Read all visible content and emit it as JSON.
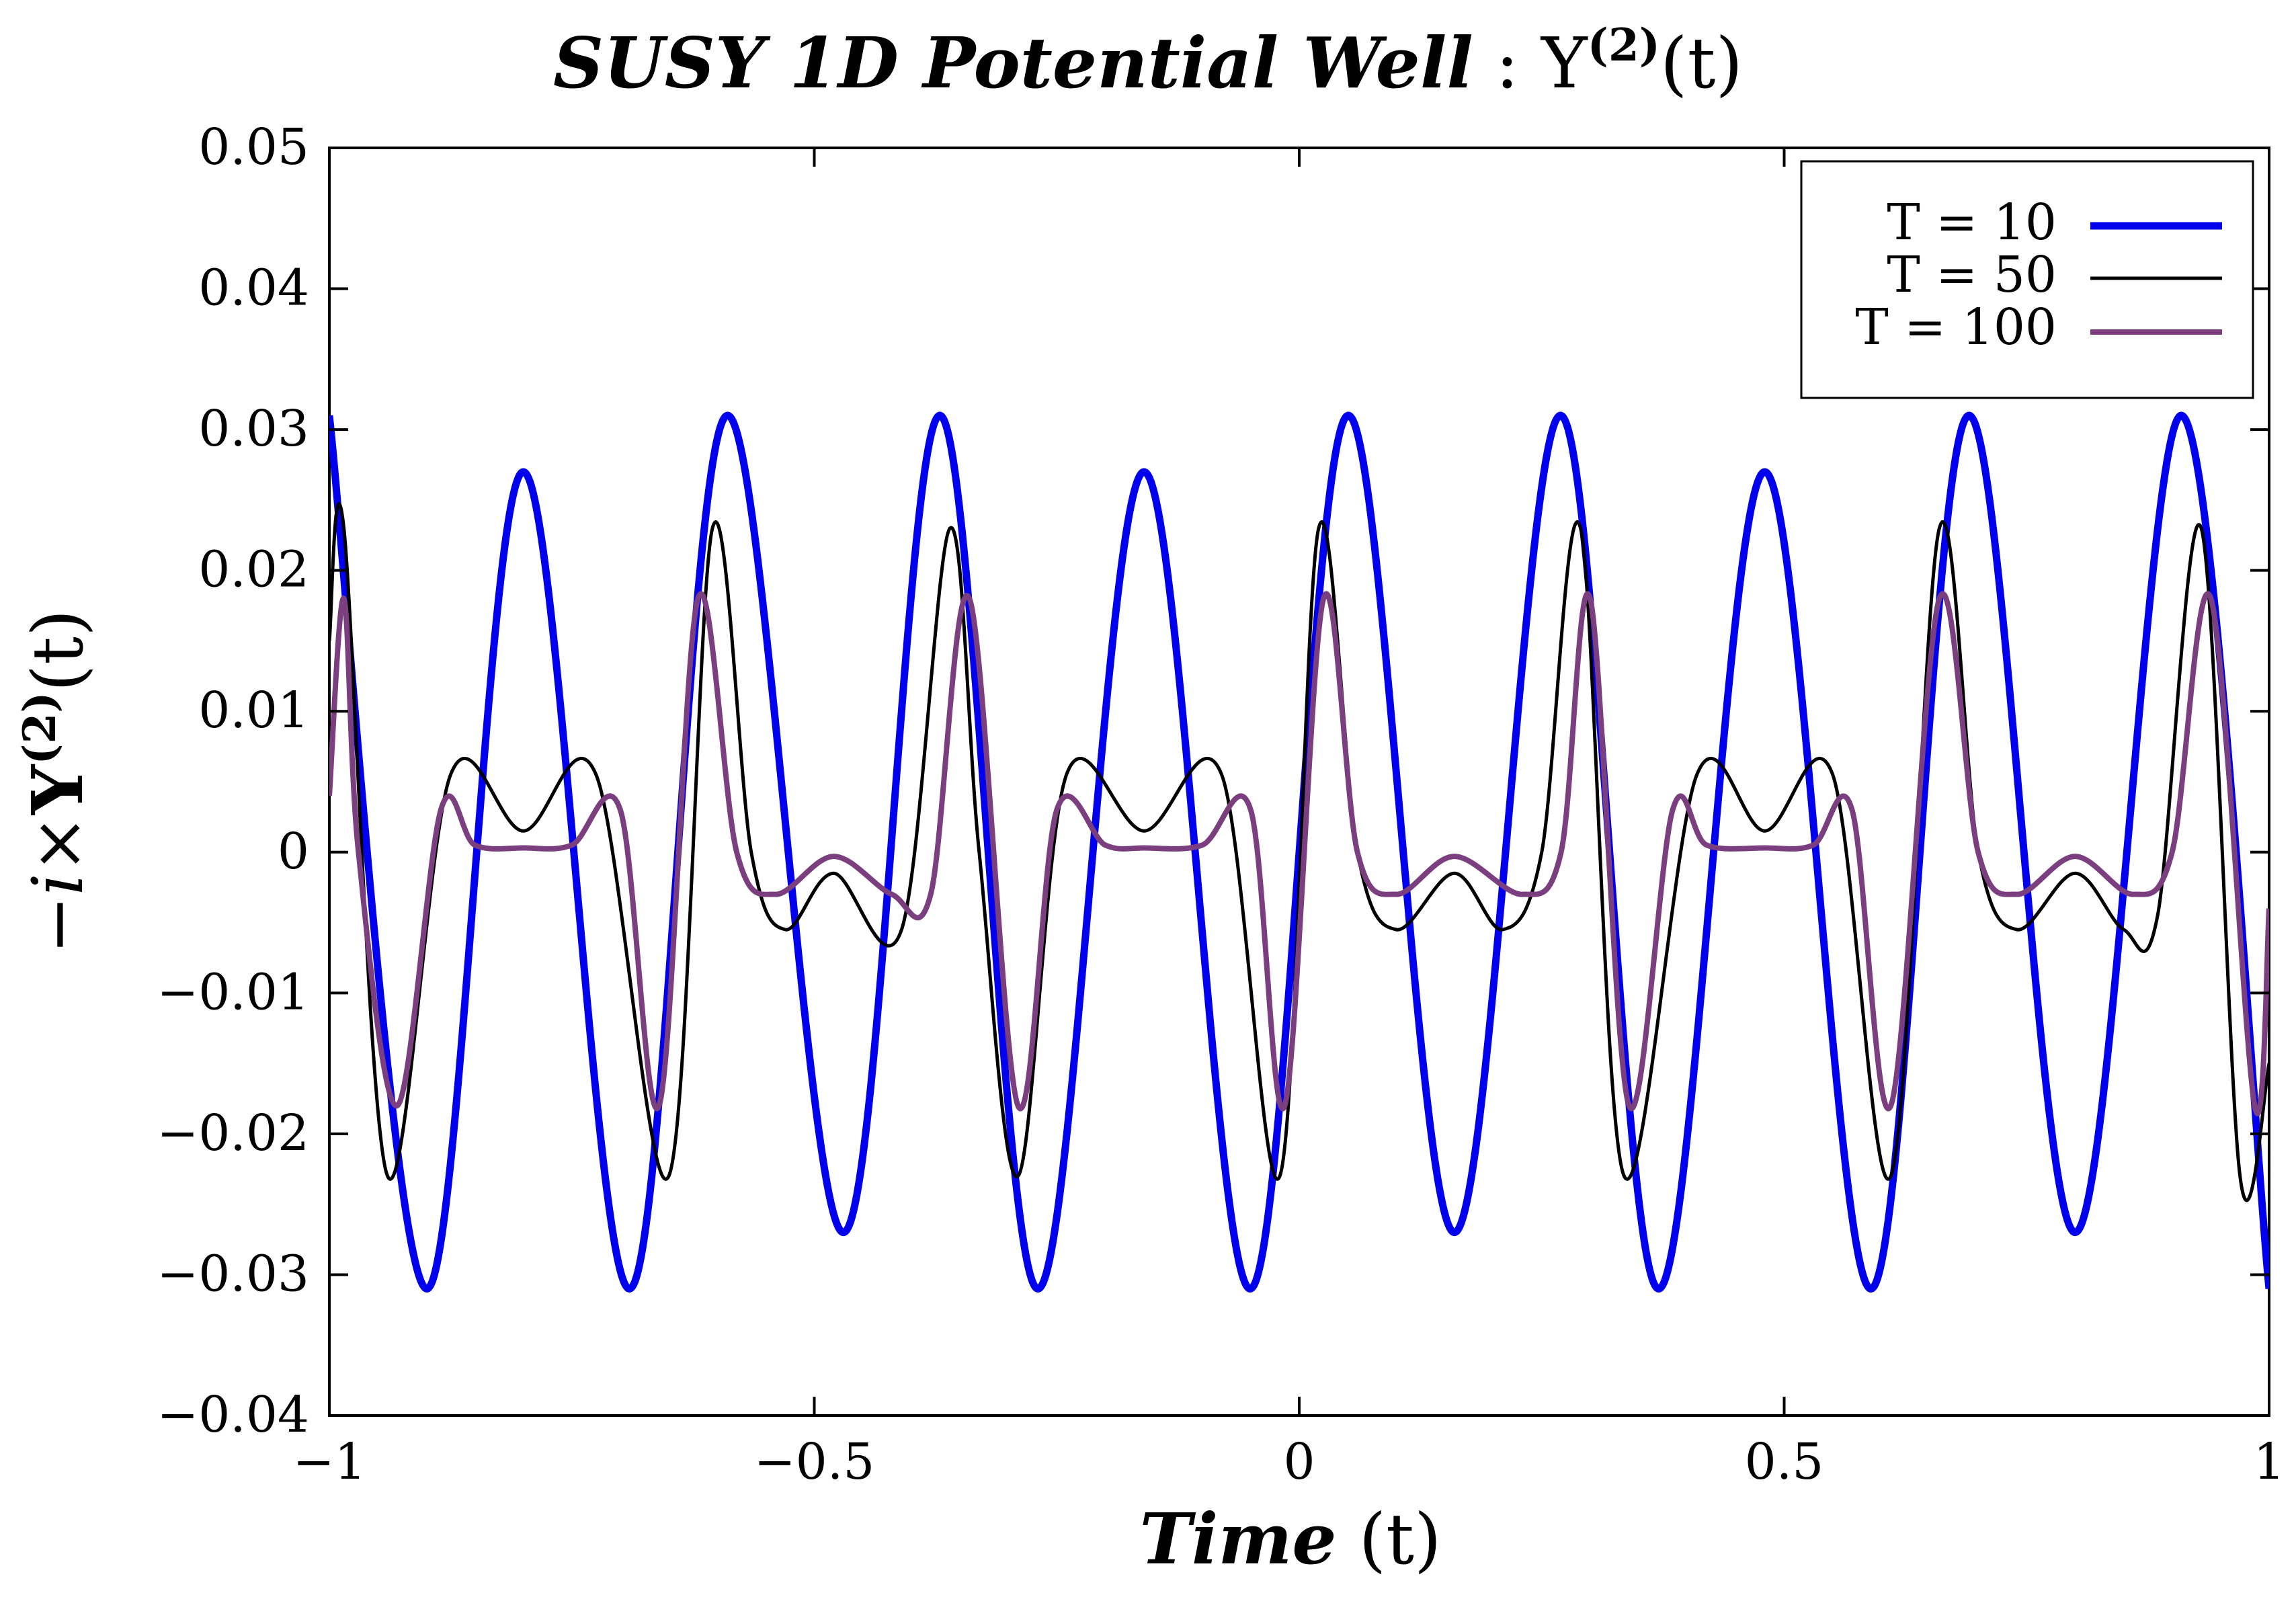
{
  "chart_data": {
    "type": "line",
    "title": {
      "italic_part": "SUSY 1D Potential Well",
      "separator": " : ",
      "symbol": "Υ",
      "superscript": "(2)",
      "arg": "(t)"
    },
    "xlabel": {
      "italic_part": "Time",
      "rest": " (t)"
    },
    "ylabel": {
      "prefix": "−i×",
      "symbol": "Υ",
      "superscript": "(2)",
      "arg": "(t)"
    },
    "xlim": [
      -1,
      1
    ],
    "ylim": [
      -0.04,
      0.05
    ],
    "x_ticks": [
      -1,
      -0.5,
      0,
      0.5,
      1
    ],
    "x_tick_labels": [
      "−1",
      "−0.5",
      "0",
      "0.5",
      "1"
    ],
    "y_ticks": [
      -0.04,
      -0.03,
      -0.02,
      -0.01,
      0,
      0.01,
      0.02,
      0.03,
      0.04,
      0.05
    ],
    "y_tick_labels": [
      "−0.04",
      "−0.03",
      "−0.02",
      "−0.01",
      "0",
      "0.01",
      "0.02",
      "0.03",
      "0.04",
      "0.05"
    ],
    "grid": false,
    "legend_position": "top-right",
    "series": [
      {
        "name": "T = 10",
        "color": "#0000ee",
        "x": [
          -1.0,
          -0.9,
          -0.8,
          -0.69,
          -0.59,
          -0.47,
          -0.37,
          -0.27,
          -0.16,
          -0.05,
          0.05,
          0.16,
          0.27,
          0.37,
          0.48,
          0.59,
          0.69,
          0.8,
          0.91,
          1.0
        ],
        "y": [
          0.031,
          -0.031,
          0.027,
          -0.031,
          0.031,
          -0.027,
          0.031,
          -0.031,
          0.027,
          -0.031,
          0.031,
          -0.027,
          0.031,
          -0.031,
          0.027,
          -0.031,
          0.031,
          -0.027,
          0.031,
          -0.031
        ]
      },
      {
        "name": "T = 50",
        "color": "#000000",
        "x": [
          -1.0,
          -0.985,
          -0.94,
          -0.875,
          -0.8,
          -0.725,
          -0.65,
          -0.605,
          -0.565,
          -0.53,
          -0.48,
          -0.41,
          -0.36,
          -0.33,
          -0.29,
          -0.24,
          -0.16,
          -0.08,
          -0.02,
          0.02,
          0.06,
          0.1,
          0.16,
          0.21,
          0.25,
          0.29,
          0.335,
          0.41,
          0.48,
          0.55,
          0.61,
          0.66,
          0.7,
          0.74,
          0.8,
          0.85,
          0.885,
          0.93,
          0.97,
          1.0
        ],
        "y": [
          0.015,
          0.023,
          -0.023,
          0.0055,
          0.0015,
          0.0055,
          -0.023,
          0.023,
          0.0,
          -0.0055,
          -0.0015,
          -0.0055,
          0.023,
          0.0,
          -0.023,
          0.0055,
          0.0015,
          0.0055,
          -0.023,
          0.023,
          0.0,
          -0.0055,
          -0.0015,
          -0.0055,
          0.0,
          0.023,
          -0.023,
          0.0055,
          0.0015,
          0.0055,
          -0.023,
          0.023,
          0.0,
          -0.0055,
          -0.0015,
          -0.0055,
          -0.0045,
          0.023,
          -0.023,
          -0.015
        ]
      },
      {
        "name": "T = 100",
        "color": "#7b3f7f",
        "x": [
          -1.0,
          -0.985,
          -0.97,
          -0.93,
          -0.885,
          -0.85,
          -0.8,
          -0.75,
          -0.7,
          -0.66,
          -0.62,
          -0.58,
          -0.54,
          -0.48,
          -0.42,
          -0.38,
          -0.34,
          -0.29,
          -0.25,
          -0.2,
          -0.16,
          -0.1,
          -0.05,
          -0.015,
          0.025,
          0.06,
          0.1,
          0.16,
          0.23,
          0.27,
          0.3,
          0.34,
          0.385,
          0.42,
          0.48,
          0.53,
          0.57,
          0.61,
          0.66,
          0.7,
          0.74,
          0.8,
          0.86,
          0.9,
          0.94,
          0.985,
          1.0
        ],
        "y": [
          0.004,
          0.018,
          0.0,
          -0.018,
          0.003,
          0.0005,
          0.0003,
          0.0005,
          0.003,
          -0.018,
          0.018,
          0.0,
          -0.003,
          -0.0003,
          -0.003,
          -0.003,
          0.018,
          -0.018,
          0.003,
          0.0005,
          0.0003,
          0.0005,
          0.003,
          -0.018,
          0.018,
          0.0,
          -0.003,
          -0.0003,
          -0.003,
          0.0,
          0.018,
          -0.018,
          0.003,
          0.0005,
          0.0003,
          0.0005,
          0.003,
          -0.018,
          0.018,
          0.0,
          -0.003,
          -0.0003,
          -0.003,
          0.0,
          0.018,
          -0.018,
          -0.004
        ]
      }
    ]
  }
}
